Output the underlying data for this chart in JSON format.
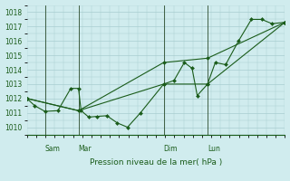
{
  "bg_color": "#d0ecee",
  "grid_color": "#a8cdd0",
  "line_color": "#1a5c1a",
  "marker_color": "#1a5c1a",
  "ylabel": "Pression niveau de la mer( hPa )",
  "ylim": [
    1009.5,
    1018.5
  ],
  "yticks": [
    1010,
    1011,
    1012,
    1013,
    1014,
    1015,
    1016,
    1017,
    1018
  ],
  "day_labels": [
    "Sam",
    "Mar",
    "Dim",
    "Lun"
  ],
  "day_positions": [
    0.07,
    0.2,
    0.53,
    0.7
  ],
  "series": [
    [
      0.0,
      1012.0,
      0.03,
      1011.5,
      0.07,
      1011.1,
      0.12,
      1011.15,
      0.17,
      1012.7,
      0.2,
      1012.7,
      0.21,
      1011.15,
      0.24,
      1010.7,
      0.27,
      1010.75,
      0.31,
      1010.8,
      0.35,
      1010.3,
      0.39,
      1010.0,
      0.44,
      1011.0,
      0.53,
      1013.0,
      0.57,
      1013.25,
      0.61,
      1014.5,
      0.64,
      1014.1,
      0.66,
      1012.2,
      0.7,
      1013.0,
      0.73,
      1014.5,
      0.77,
      1014.35,
      0.82,
      1016.0,
      0.87,
      1017.5,
      0.91,
      1017.5,
      0.95,
      1017.2,
      1.0,
      1017.3
    ],
    [
      0.0,
      1012.0,
      0.2,
      1011.15,
      0.53,
      1013.0,
      0.7,
      1013.0,
      1.0,
      1017.3
    ],
    [
      0.0,
      1012.0,
      0.2,
      1011.15,
      0.53,
      1014.5,
      0.7,
      1014.8,
      1.0,
      1017.3
    ]
  ]
}
